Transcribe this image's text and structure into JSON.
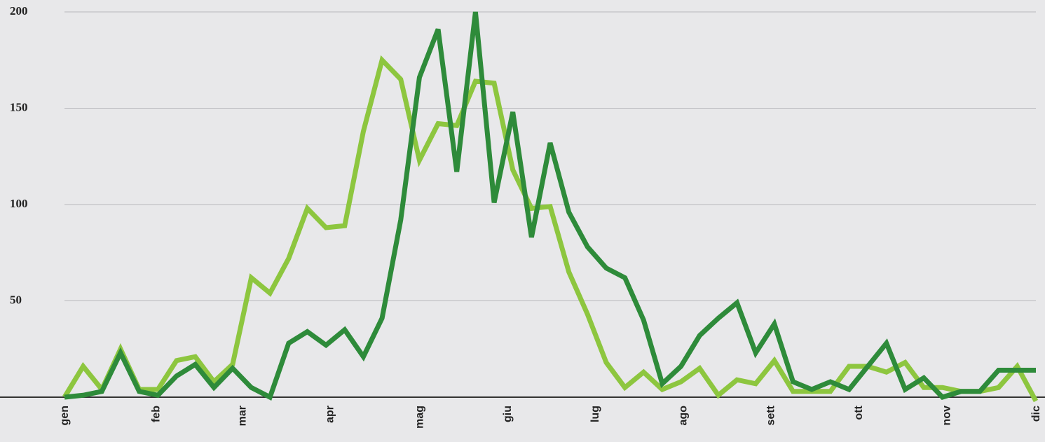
{
  "chart_data": {
    "type": "line",
    "x": [
      0,
      1,
      2,
      3,
      4,
      5,
      6,
      7,
      8,
      9,
      10,
      11,
      12,
      13,
      14,
      15,
      16,
      17,
      18,
      19,
      20,
      21,
      22,
      23,
      24,
      25,
      26,
      27,
      28,
      29,
      30,
      31,
      32,
      33,
      34,
      35,
      36,
      37,
      38,
      39,
      40,
      41,
      42,
      43,
      44,
      45,
      46,
      47,
      48,
      49,
      50,
      51,
      52
    ],
    "xlim": [
      0,
      52
    ],
    "xticks": [
      {
        "value": 0,
        "label": "gen"
      },
      {
        "value": 4.88,
        "label": "feb"
      },
      {
        "value": 9.5,
        "label": "mar"
      },
      {
        "value": 14.2,
        "label": "apr"
      },
      {
        "value": 19,
        "label": "mag"
      },
      {
        "value": 23.7,
        "label": "giu"
      },
      {
        "value": 28.4,
        "label": "lug"
      },
      {
        "value": 33.1,
        "label": "ago"
      },
      {
        "value": 37.8,
        "label": "sett"
      },
      {
        "value": 42.5,
        "label": "ott"
      },
      {
        "value": 47.2,
        "label": "nov"
      },
      {
        "value": 52,
        "label": "dic"
      }
    ],
    "ylim": [
      0,
      200
    ],
    "yticks": [
      50,
      100,
      150,
      200
    ],
    "grid": true,
    "series": [
      {
        "color": "#8dc63f",
        "values": [
          0,
          16,
          4,
          25,
          4,
          4,
          19,
          21,
          8,
          17,
          62,
          54,
          72,
          98,
          88,
          89,
          138,
          175,
          165,
          123,
          142,
          141,
          164,
          163,
          118,
          98,
          99,
          65,
          43,
          18,
          5,
          13,
          4,
          8,
          15,
          1,
          9,
          7,
          19,
          3,
          3,
          3,
          16,
          16,
          13,
          18,
          5,
          5,
          3,
          3,
          5,
          16,
          -2
        ]
      },
      {
        "color": "#2e8b3a",
        "values": [
          0,
          1,
          3,
          23,
          3,
          1,
          11,
          17,
          5,
          15,
          5,
          0,
          28,
          34,
          27,
          35,
          21,
          41,
          92,
          166,
          191,
          117,
          200,
          101,
          148,
          83,
          132,
          96,
          78,
          67,
          62,
          40,
          7,
          16,
          32,
          41,
          49,
          23,
          38,
          8,
          4,
          8,
          4,
          16,
          28,
          4,
          10,
          0,
          3,
          3,
          14,
          14,
          14
        ]
      }
    ]
  }
}
